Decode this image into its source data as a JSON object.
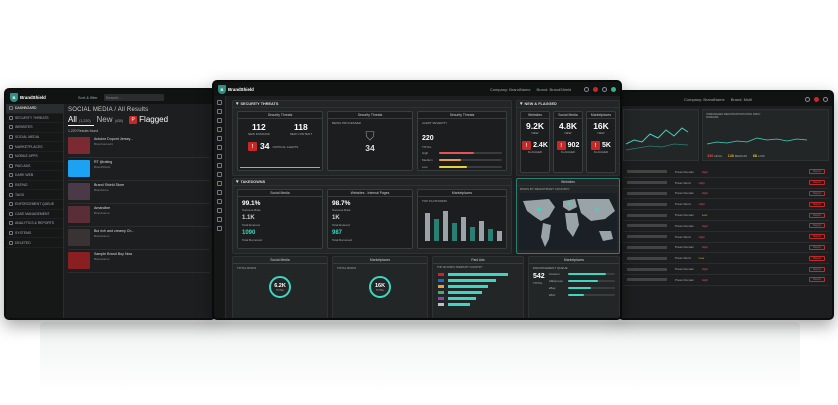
{
  "brand": {
    "name": "BrandShield",
    "accent": "#3dd6c0",
    "alert": "#c62828"
  },
  "left_screen": {
    "sidebar": [
      {
        "label": "DASHBOARD",
        "icon": "grid-icon",
        "active": true
      },
      {
        "label": "SECURITY THREATS",
        "icon": "shield-icon"
      },
      {
        "label": "WEBSITES",
        "icon": "globe-icon"
      },
      {
        "label": "SOCIAL MEDIA",
        "icon": "people-icon"
      },
      {
        "label": "MARKETPLACES",
        "icon": "cart-icon"
      },
      {
        "label": "MOBILE APPS",
        "icon": "phone-icon"
      },
      {
        "label": "PAID ADS",
        "icon": "ads-icon"
      },
      {
        "label": "DARK WEB",
        "icon": "eye-icon"
      },
      {
        "label": "RATING",
        "icon": "star-icon"
      },
      {
        "label": "TAGS",
        "icon": "tag-icon"
      },
      {
        "label": "ENFORCEMENT QUEUE",
        "icon": "queue-icon"
      },
      {
        "label": "CASE MANAGEMENT",
        "icon": "folder-icon"
      },
      {
        "label": "ANALYTICS & REPORTS",
        "icon": "chart-icon"
      },
      {
        "label": "SYSTEMS",
        "icon": "gear-icon"
      },
      {
        "label": "DELETED",
        "icon": "trash-icon"
      }
    ],
    "toolbar": {
      "sort": "Sort & filter",
      "search_placeholder": "Search..."
    },
    "heading": "SOCIAL MEDIA / All Results",
    "tabs": [
      {
        "label": "All",
        "count": "(1,220)"
      },
      {
        "label": "New",
        "count": "(430)"
      },
      {
        "label": "Flagged",
        "badge": "P"
      }
    ],
    "results_found": "1,220 Results found",
    "rows": [
      {
        "title": "Antoine Dupont Jersey...",
        "meta": "Brandname44",
        "thumb": "#7a2a30"
      },
      {
        "title": "RT @rating",
        "meta": "BrandShield",
        "thumb": "#1da1f2"
      },
      {
        "title": "Brand Shield Store",
        "meta": "Brandstore",
        "thumb": "#4a3a48"
      },
      {
        "title": "Amandine",
        "meta": "Brandname",
        "thumb": "#5a2e36"
      },
      {
        "title": "Bui rich and creamy Ch...",
        "meta": "Brandname",
        "thumb": "#3a3333"
      },
      {
        "title": "Sample Brand Buy Now",
        "meta": "Brandname",
        "thumb": "#8a1f22"
      }
    ]
  },
  "center_screen": {
    "topbar": {
      "company_label": "Company: BrandName",
      "brand_label": "Brand: BrandShield"
    },
    "security": {
      "title": "SECURITY THREATS",
      "cards": [
        {
          "title": "Security Threats",
          "a_value": "112",
          "a_label": "NEW DOMAINS",
          "b_value": "118",
          "b_label": "NEW CONTENT",
          "alert_value": "34",
          "alert_label": "CRITICAL ALERTS"
        },
        {
          "title": "Security Threats",
          "label": "BEING PROCESSED",
          "value": "34"
        },
        {
          "title": "Security Threats",
          "label": "ALERT SEVERITY",
          "value": "220",
          "sub": "TOTAL",
          "levels": [
            {
              "name": "High",
              "pct": 0.55,
              "color": "#e05555"
            },
            {
              "name": "Medium",
              "pct": 0.35,
              "color": "#e6a23c"
            },
            {
              "name": "Low",
              "pct": 0.45,
              "color": "#e6d23c"
            }
          ]
        }
      ]
    },
    "new_flagged": {
      "title": "NEW & FLAGGED",
      "cols": [
        {
          "name": "Websites",
          "new": "9.2K",
          "flagged": "2.4K"
        },
        {
          "name": "Social Media",
          "new": "4.8K",
          "flagged": "902"
        },
        {
          "name": "Marketplaces",
          "new": "16K",
          "flagged": "5K"
        }
      ],
      "new_label": "NEW",
      "flagged_label": "FLAGGED"
    },
    "takedowns": {
      "title": "TAKEDOWNS",
      "cards": [
        {
          "title": "Social Media",
          "rate": "99.1%",
          "rate_label": "Success Rate",
          "entered": "1.1K",
          "entered_label": "Total Entered",
          "removed": "1090",
          "removed_label": "Total Removed"
        },
        {
          "title": "Websites - Internal Pages",
          "rate": "98.7%",
          "rate_label": "Success Rate",
          "entered": "1K",
          "entered_label": "Total Entered",
          "removed": "987",
          "removed_label": "Total Removed"
        },
        {
          "title": "Marketplaces",
          "label": "TOP PLATFORMS"
        }
      ]
    },
    "websites_map": {
      "title": "Websites",
      "label": "RISKS BY REGISTRANT COUNTRY"
    },
    "bottom": [
      {
        "title": "Social Media",
        "label": "TOTAL RISKS",
        "value": "6.2K",
        "sub": "TOTAL"
      },
      {
        "title": "Marketplaces",
        "label": "TOTAL RISKS",
        "value": "16K",
        "sub": "TOTAL"
      },
      {
        "title": "Paid Ads",
        "label": "TOP AD RISKS TERMS BY COUNTRY"
      },
      {
        "title": "Marketplaces",
        "label": "ENFORCEMENT QUEUE",
        "value": "542",
        "sub": "TOTAL",
        "rows": [
          "Amazon",
          "AliExpress",
          "eBay",
          "Wish"
        ]
      }
    ]
  },
  "right_screen": {
    "topbar": {
      "company_label": "Company: BrandName",
      "brand_label": "Brand: Multi"
    },
    "chart_caption": "UNMANAGED REGISTRATIONS WITH RISKY DOMAINS",
    "badges": [
      {
        "value": "326",
        "label": "HIGH"
      },
      {
        "value": "148",
        "label": "MEDIUM"
      },
      {
        "value": "68",
        "label": "LOW"
      }
    ],
    "rows": [
      {
        "type": "Press Domain",
        "status": "High"
      },
      {
        "type": "Press Word",
        "status": "High"
      },
      {
        "type": "Press Domain",
        "status": "High"
      },
      {
        "type": "Press Word",
        "status": "High"
      },
      {
        "type": "Press Domain",
        "status": "Low"
      },
      {
        "type": "Press Domain",
        "status": "High"
      },
      {
        "type": "Press Word",
        "status": "High"
      },
      {
        "type": "Press Domain",
        "status": "High"
      },
      {
        "type": "Press Word",
        "status": "Low"
      },
      {
        "type": "Press Domain",
        "status": "High"
      },
      {
        "type": "Press Domain",
        "status": "High"
      }
    ],
    "action_label": "Report"
  }
}
